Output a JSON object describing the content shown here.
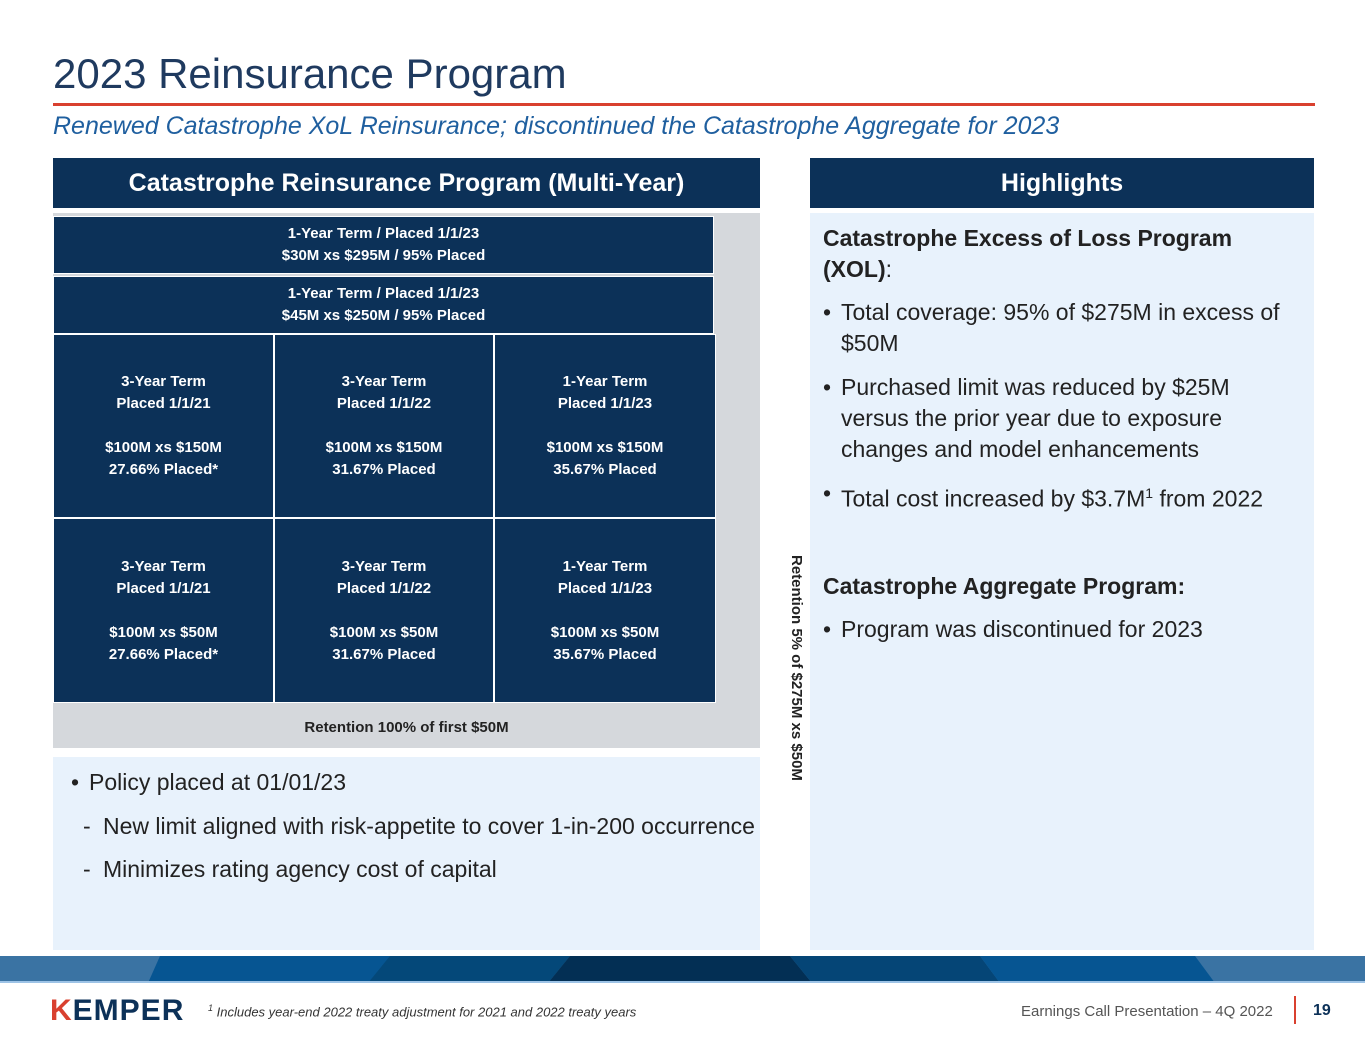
{
  "title": "2023 Reinsurance Program",
  "subtitle": "Renewed Catastrophe XoL Reinsurance; discontinued the Catastrophe Aggregate for 2023",
  "left_header": "Catastrophe Reinsurance Program (Multi-Year)",
  "right_header": "Highlights",
  "diagram": {
    "top_layers": [
      {
        "line1": "1-Year Term / Placed 1/1/23",
        "line2": "$30M xs $295M / 95% Placed"
      },
      {
        "line1": "1-Year Term / Placed 1/1/23",
        "line2": "$45M xs $250M / 95% Placed"
      }
    ],
    "grid": [
      {
        "term": "3-Year Term",
        "placed": "Placed 1/1/21",
        "limit": "$100M xs $150M",
        "pct": "27.66% Placed*"
      },
      {
        "term": "3-Year Term",
        "placed": "Placed 1/1/22",
        "limit": "$100M xs $150M",
        "pct": "31.67% Placed"
      },
      {
        "term": "1-Year Term",
        "placed": "Placed 1/1/23",
        "limit": "$100M xs $150M",
        "pct": "35.67% Placed"
      },
      {
        "term": "3-Year Term",
        "placed": "Placed 1/1/21",
        "limit": "$100M xs $50M",
        "pct": "27.66% Placed*"
      },
      {
        "term": "3-Year Term",
        "placed": "Placed 1/1/22",
        "limit": "$100M xs $50M",
        "pct": "31.67% Placed"
      },
      {
        "term": "1-Year Term",
        "placed": "Placed 1/1/23",
        "limit": "$100M xs $50M",
        "pct": "35.67% Placed"
      }
    ],
    "side_retention": "Retention 5% of $275M xs $50M",
    "bottom_retention": "Retention 100% of first $50M"
  },
  "notes": {
    "bullet": "Policy placed at 01/01/23",
    "subs": [
      "New limit aligned with risk-appetite to cover 1-in-200 occurrence",
      "Minimizes rating agency cost of capital"
    ]
  },
  "highlights": {
    "xol_heading": "Catastrophe Excess of Loss Program (XOL)",
    "xol_colon": ":",
    "xol_bullets": [
      "Total coverage: 95% of $275M in excess of $50M",
      "Purchased limit was reduced by $25M versus the prior year due to exposure changes and model enhancements"
    ],
    "cost_pre": "Total cost increased by $3.7M",
    "cost_sup": "1",
    "cost_post": " from 2022",
    "agg_heading": "Catastrophe Aggregate Program:",
    "agg_bullets": [
      "Program was discontinued for 2023"
    ]
  },
  "footer": {
    "logo": "KEMPER",
    "footnote_sup": "1",
    "footnote": "Includes year-end 2022 treaty adjustment for 2021 and 2022 treaty years",
    "presentation": "Earnings Call Presentation – 4Q 2022",
    "page": "19"
  },
  "colors": {
    "navy": "#0c3158",
    "accent_red": "#d9402f",
    "light_blue": "#e8f2fc"
  }
}
